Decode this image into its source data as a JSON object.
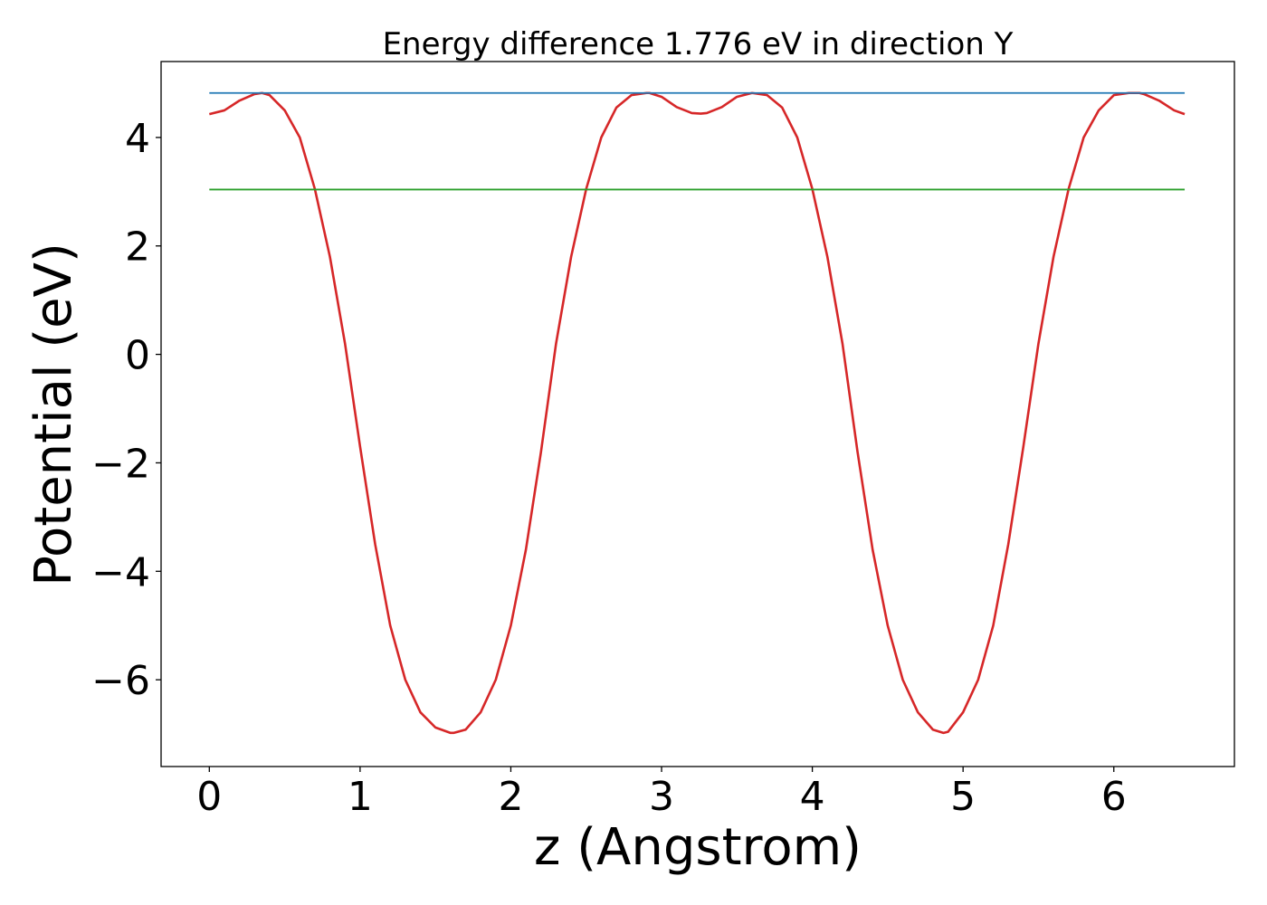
{
  "chart_data": {
    "type": "line",
    "title": "Energy difference 1.776 eV in direction Y",
    "xlabel": "z (Angstrom)",
    "ylabel": "Potential (eV)",
    "xlim": [
      -0.32,
      6.8
    ],
    "ylim": [
      -7.6,
      5.4
    ],
    "xticks": [
      0,
      1,
      2,
      3,
      4,
      5,
      6
    ],
    "yticks": [
      -6,
      -4,
      -2,
      0,
      2,
      4
    ],
    "xtick_labels": [
      "0",
      "1",
      "2",
      "3",
      "4",
      "5",
      "6"
    ],
    "ytick_labels": [
      "−6",
      "−4",
      "−2",
      "0",
      "2",
      "4"
    ],
    "grid": false,
    "legend": "none",
    "series": [
      {
        "color": "#d62728",
        "x": [
          0.0,
          0.1,
          0.2,
          0.3,
          0.35,
          0.4,
          0.5,
          0.6,
          0.7,
          0.8,
          0.9,
          1.0,
          1.1,
          1.2,
          1.3,
          1.4,
          1.5,
          1.6,
          1.62,
          1.7,
          1.8,
          1.9,
          2.0,
          2.1,
          2.2,
          2.3,
          2.4,
          2.5,
          2.6,
          2.7,
          2.8,
          2.9,
          2.92,
          3.0,
          3.1,
          3.2,
          3.26,
          3.3,
          3.4,
          3.5,
          3.6,
          3.7,
          3.8,
          3.9,
          4.0,
          4.1,
          4.2,
          4.3,
          4.4,
          4.5,
          4.6,
          4.7,
          4.8,
          4.87,
          4.9,
          5.0,
          5.1,
          5.2,
          5.3,
          5.4,
          5.5,
          5.6,
          5.7,
          5.8,
          5.9,
          6.0,
          6.1,
          6.17,
          6.2,
          6.3,
          6.4,
          6.47
        ],
        "y": [
          4.43,
          4.5,
          4.68,
          4.8,
          4.82,
          4.78,
          4.5,
          4.0,
          3.05,
          1.8,
          0.2,
          -1.7,
          -3.5,
          -5.0,
          -6.0,
          -6.6,
          -6.88,
          -6.98,
          -6.98,
          -6.92,
          -6.6,
          -6.0,
          -5.0,
          -3.6,
          -1.8,
          0.2,
          1.8,
          3.05,
          4.0,
          4.55,
          4.78,
          4.82,
          4.82,
          4.75,
          4.56,
          4.45,
          4.44,
          4.45,
          4.56,
          4.75,
          4.82,
          4.78,
          4.55,
          4.0,
          3.05,
          1.8,
          0.2,
          -1.8,
          -3.6,
          -5.0,
          -6.0,
          -6.6,
          -6.92,
          -6.98,
          -6.96,
          -6.6,
          -6.0,
          -5.0,
          -3.5,
          -1.7,
          0.2,
          1.8,
          3.05,
          4.0,
          4.5,
          4.78,
          4.82,
          4.82,
          4.8,
          4.68,
          4.5,
          4.43
        ]
      },
      {
        "color": "#1f77b4",
        "x": [
          0.0,
          6.47
        ],
        "y": [
          4.82,
          4.82
        ]
      },
      {
        "color": "#2ca02c",
        "x": [
          0.0,
          6.47
        ],
        "y": [
          3.04,
          3.04
        ]
      }
    ]
  }
}
